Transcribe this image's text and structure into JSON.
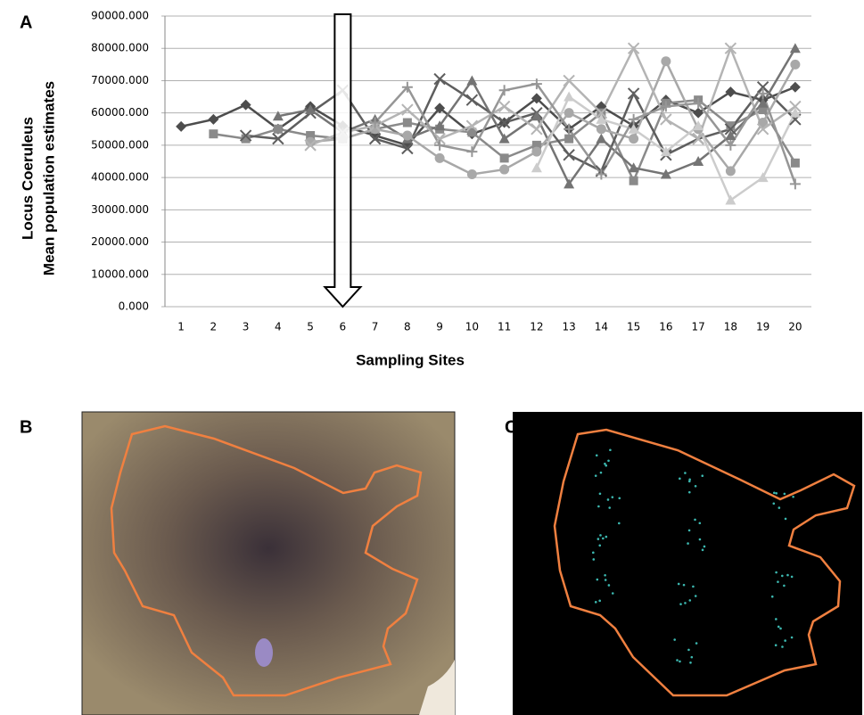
{
  "chart_data": {
    "type": "line",
    "panel_label": "A",
    "x_label": "Sampling Sites",
    "y_label": [
      "Locus Coeruleus",
      "Mean population estimates"
    ],
    "categories": [
      "1",
      "2",
      "3",
      "4",
      "5",
      "6",
      "7",
      "8",
      "9",
      "10",
      "11",
      "12",
      "13",
      "14",
      "15",
      "16",
      "17",
      "18",
      "19",
      "20"
    ],
    "ylim": [
      0,
      90000
    ],
    "yticks": [
      {
        "value": 0,
        "label": "0.000"
      },
      {
        "value": 10000,
        "label": "10000.000"
      },
      {
        "value": 20000,
        "label": "20000.000"
      },
      {
        "value": 30000,
        "label": "30000.000"
      },
      {
        "value": 40000,
        "label": "40000.000"
      },
      {
        "value": 50000,
        "label": "50000.000"
      },
      {
        "value": 60000,
        "label": "60000.000"
      },
      {
        "value": 70000,
        "label": "70000.000"
      },
      {
        "value": 80000,
        "label": "80000.000"
      },
      {
        "value": 90000,
        "label": "90000.000"
      }
    ],
    "grid": true,
    "series": [
      {
        "color": "#4d4d4d",
        "marker": "diamond",
        "values": [
          55800,
          58000,
          62500,
          55000,
          62000,
          56000,
          53000,
          50000,
          61500,
          53500,
          57000,
          64500,
          55000,
          62000,
          56000,
          64000,
          60000,
          66500,
          64000,
          68000
        ]
      },
      {
        "color": "#8a8a8a",
        "marker": "square",
        "values": [
          null,
          53500,
          52000,
          55000,
          53000,
          52000,
          55000,
          57000,
          55000,
          54000,
          46000,
          50000,
          52000,
          60000,
          39000,
          63000,
          64000,
          56000,
          61000,
          44500
        ]
      },
      {
        "color": "#5e5e5e",
        "marker": "x",
        "values": [
          null,
          null,
          53000,
          52000,
          60000,
          67000,
          52000,
          49000,
          70500,
          64000,
          57000,
          60000,
          47000,
          42000,
          66000,
          47000,
          52000,
          55000,
          68000,
          58000
        ]
      },
      {
        "color": "#747474",
        "marker": "triangle",
        "values": [
          null,
          null,
          null,
          59000,
          61000,
          54000,
          58000,
          52000,
          56000,
          70000,
          52000,
          59000,
          38000,
          52000,
          43000,
          41000,
          45000,
          53000,
          63000,
          80000
        ]
      },
      {
        "color": "#a8a8a8",
        "marker": "circle",
        "values": [
          null,
          null,
          null,
          null,
          51000,
          52000,
          55000,
          53000,
          46000,
          41000,
          42500,
          48000,
          60000,
          55000,
          52000,
          76000,
          55000,
          42000,
          57000,
          75000
        ]
      },
      {
        "color": "#b4b4b4",
        "marker": "x",
        "values": [
          null,
          null,
          null,
          null,
          50000,
          54000,
          56000,
          61000,
          52000,
          56000,
          62000,
          55000,
          70000,
          60000,
          80000,
          58000,
          52000,
          80000,
          55000,
          62000
        ]
      },
      {
        "color": "#cccccc",
        "marker": "triangle",
        "values": [
          null,
          null,
          null,
          null,
          null,
          null,
          null,
          null,
          null,
          null,
          null,
          43000,
          65000,
          58000,
          55000,
          48000,
          56000,
          33000,
          40000,
          60000
        ]
      },
      {
        "color": "#969696",
        "marker": "plus",
        "values": [
          null,
          null,
          null,
          null,
          null,
          null,
          57000,
          68000,
          50000,
          48000,
          67000,
          69000,
          55000,
          41000,
          58000,
          62000,
          63000,
          50000,
          66000,
          38000
        ]
      }
    ]
  },
  "panels": [
    {
      "label": "B"
    },
    {
      "label": "C"
    }
  ]
}
